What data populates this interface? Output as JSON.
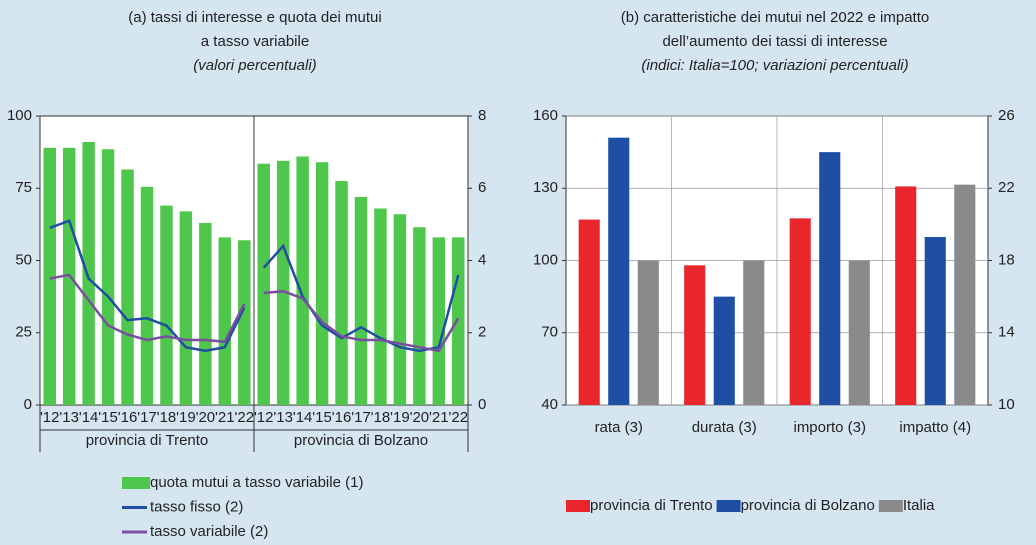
{
  "chart_data": [
    {
      "type": "bar",
      "title": [
        "(a) tassi di interesse e quota dei mutui",
        "a tasso variabile"
      ],
      "subtitle": "(valori percentuali)",
      "groups": [
        {
          "label": "provincia di Trento",
          "categories": [
            "'12",
            "'13",
            "'14",
            "'15",
            "'16",
            "'17",
            "'18",
            "'19",
            "'20",
            "'21",
            "'22"
          ]
        },
        {
          "label": "provincia di Bolzano",
          "categories": [
            "'12",
            "'13",
            "'14",
            "'15",
            "'16",
            "'17",
            "'18",
            "'19",
            "'20",
            "'21",
            "'22"
          ]
        }
      ],
      "series": [
        {
          "name": "quota mutui a tasso variabile (1)",
          "type": "bar",
          "color": "#4fc64c",
          "values": [
            [
              89,
              89,
              91,
              88.5,
              81.5,
              75.5,
              69,
              67,
              63,
              58,
              57
            ],
            [
              83.5,
              84.5,
              86,
              84,
              77.5,
              72,
              68,
              66,
              61.5,
              58,
              58
            ]
          ]
        },
        {
          "name": "tasso fisso (2)",
          "type": "line",
          "axis": "y2",
          "color": "#1f4ea3",
          "values": [
            [
              4.9,
              5.1,
              3.5,
              3.0,
              2.35,
              2.4,
              2.2,
              1.6,
              1.5,
              1.6,
              2.7
            ],
            [
              3.8,
              4.4,
              3.0,
              2.2,
              1.85,
              2.15,
              1.85,
              1.6,
              1.5,
              1.6,
              3.6
            ]
          ]
        },
        {
          "name": "tasso variabile (2)",
          "type": "line",
          "axis": "y2",
          "color": "#7a4ea0",
          "values": [
            [
              3.5,
              3.6,
              2.9,
              2.2,
              1.95,
              1.8,
              1.9,
              1.8,
              1.8,
              1.75,
              2.8
            ],
            [
              3.1,
              3.15,
              2.95,
              2.3,
              1.9,
              1.8,
              1.8,
              1.7,
              1.6,
              1.5,
              2.4
            ]
          ]
        }
      ],
      "ylim": [
        0,
        100
      ],
      "yticks": [
        0,
        25,
        50,
        75,
        100
      ],
      "y2lim": [
        0,
        8
      ],
      "y2ticks": [
        0,
        2,
        4,
        6,
        8
      ],
      "grid": false,
      "legend": "bottom"
    },
    {
      "type": "grouped_bar",
      "title": [
        "(b) caratteristiche dei mutui nel 2022 e impatto",
        "dell’aumento dei tassi di interesse"
      ],
      "subtitle": "(indici: Italia=100; variazioni percentuali)",
      "categories": [
        "rata (3)",
        "durata (3)",
        "importo (3)",
        "impatto (4)"
      ],
      "category_axis": [
        "y",
        "y",
        "y",
        "y2"
      ],
      "series": [
        {
          "name": "provincia di Trento",
          "color": "#e8262b",
          "values": [
            117,
            98,
            117.5,
            22.1
          ]
        },
        {
          "name": "provincia di Bolzano",
          "color": "#1f4fa5",
          "values": [
            151,
            85,
            145,
            19.3
          ]
        },
        {
          "name": "Italia",
          "color": "#8a8a8a",
          "values": [
            100,
            100,
            100,
            22.2
          ]
        }
      ],
      "ylim": [
        40,
        160
      ],
      "yticks": [
        40,
        70,
        100,
        130,
        160
      ],
      "y2lim": [
        10,
        26
      ],
      "y2ticks": [
        10,
        14,
        18,
        22,
        26
      ],
      "grid": true,
      "legend": "bottom"
    }
  ]
}
